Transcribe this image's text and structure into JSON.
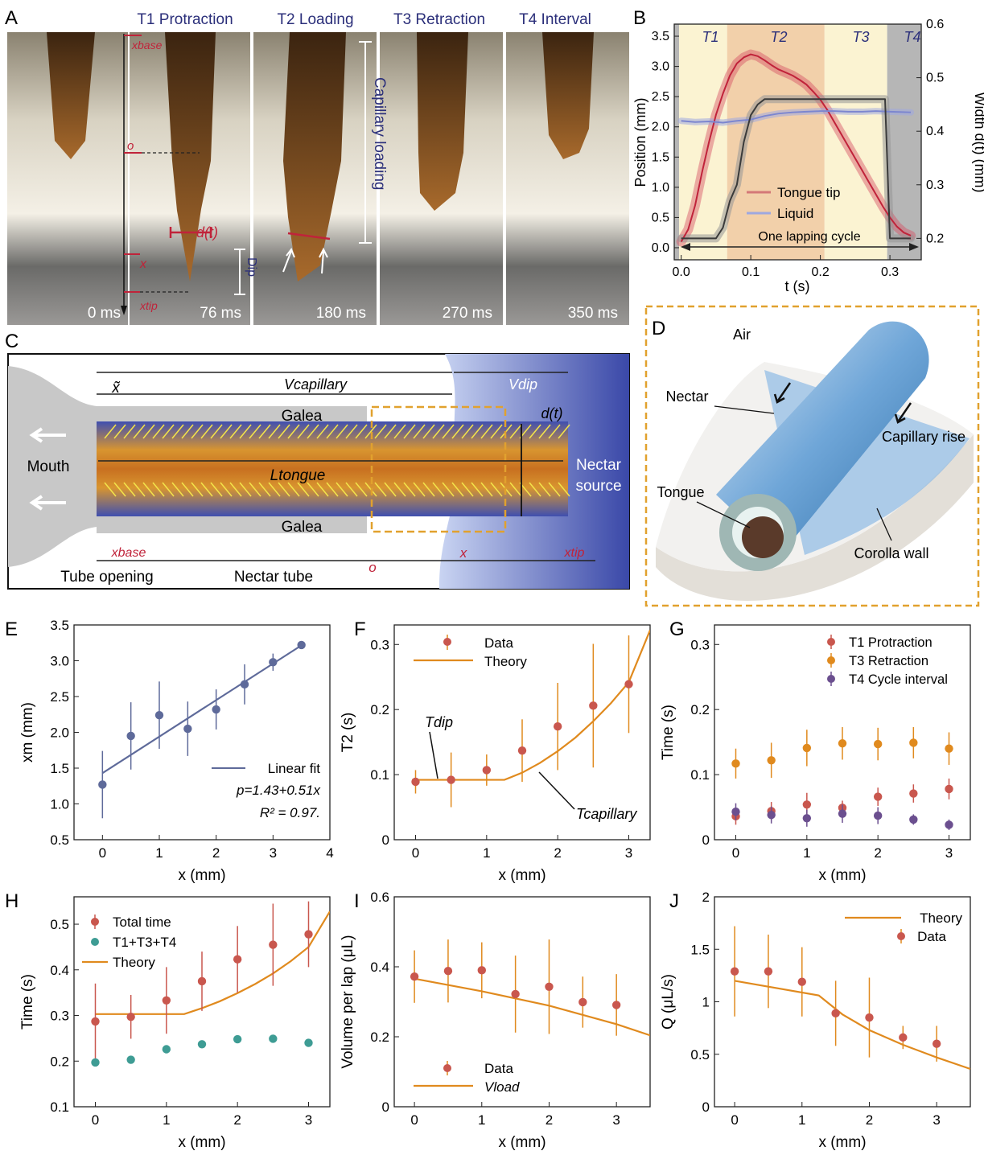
{
  "colors": {
    "orange": "#E08A1E",
    "red": "#C9574E",
    "purple": "#6B4F8F",
    "teal": "#3E9C94",
    "slate": "#5E6A9A",
    "navy": "#2B2F7A",
    "crimson": "#C0233A",
    "pink": "#D47878",
    "lavender": "#9EA8E0",
    "darkgray": "#3A3A3A",
    "dashed_orange": "#E1A12E"
  },
  "panel_letters": {
    "A": "A",
    "B": "B",
    "C": "C",
    "D": "D",
    "E": "E",
    "F": "F",
    "G": "G",
    "H": "H",
    "I": "I",
    "J": "J"
  },
  "panelA": {
    "phases": [
      "T1 Protraction",
      "T2 Loading",
      "T3 Retraction",
      "T4 Interval"
    ],
    "times": [
      "0 ms",
      "76 ms",
      "180 ms",
      "270 ms",
      "350 ms"
    ],
    "labels": {
      "xbase": "xbase",
      "o": "o",
      "x": "x",
      "xtip": "xtip",
      "dt": "d(t)",
      "dip": "Dip",
      "capillary_loading": "Capillary loading"
    }
  },
  "panelB": {
    "phases": [
      "T1",
      "T2",
      "T3",
      "T4"
    ],
    "legend": [
      "Tongue tip",
      "Liquid"
    ],
    "cycle_label": "One lapping cycle",
    "chart_data": {
      "type": "line",
      "xlabel": "t (s)",
      "ylabel_left": "Position (mm)",
      "ylabel_right": "Width d(t) (mm)",
      "xlim": [
        -0.01,
        0.345
      ],
      "ylim_left": [
        -0.2,
        3.7
      ],
      "ylim_right": [
        0.16,
        0.6
      ],
      "xticks": [
        "0.0",
        "0.1",
        "0.2",
        "0.3"
      ],
      "yticks_left": [
        "0.0",
        "0.5",
        "1.0",
        "1.5",
        "2.0",
        "2.5",
        "3.0",
        "3.5"
      ],
      "yticks_right": [
        "0.2",
        "0.3",
        "0.4",
        "0.5",
        "0.6"
      ],
      "phase_bounds": [
        -0.003,
        0.066,
        0.206,
        0.296,
        0.345
      ],
      "series": [
        {
          "name": "Tongue tip",
          "axis": "left",
          "x": [
            0,
            0.01,
            0.02,
            0.03,
            0.04,
            0.05,
            0.06,
            0.07,
            0.08,
            0.09,
            0.1,
            0.11,
            0.12,
            0.13,
            0.14,
            0.15,
            0.16,
            0.17,
            0.18,
            0.19,
            0.2,
            0.21,
            0.22,
            0.23,
            0.24,
            0.25,
            0.26,
            0.27,
            0.28,
            0.29,
            0.3,
            0.31,
            0.32,
            0.33
          ],
          "y": [
            0.1,
            0.3,
            0.7,
            1.25,
            1.75,
            2.2,
            2.55,
            2.85,
            3.05,
            3.15,
            3.2,
            3.17,
            3.1,
            3.02,
            2.95,
            2.9,
            2.85,
            2.78,
            2.7,
            2.58,
            2.45,
            2.28,
            2.08,
            1.88,
            1.68,
            1.48,
            1.28,
            1.08,
            0.88,
            0.68,
            0.5,
            0.35,
            0.25,
            0.2
          ]
        },
        {
          "name": "Liquid",
          "axis": "left",
          "x": [
            0,
            0.02,
            0.04,
            0.06,
            0.08,
            0.1,
            0.12,
            0.14,
            0.16,
            0.18,
            0.2,
            0.22,
            0.24,
            0.26,
            0.28,
            0.3,
            0.33
          ],
          "y": [
            2.1,
            2.08,
            2.09,
            2.07,
            2.1,
            2.12,
            2.18,
            2.22,
            2.24,
            2.25,
            2.26,
            2.26,
            2.25,
            2.25,
            2.26,
            2.25,
            2.24
          ]
        },
        {
          "name": "Width d(t)",
          "axis": "right",
          "x": [
            0,
            0.05,
            0.06,
            0.07,
            0.08,
            0.09,
            0.1,
            0.11,
            0.12,
            0.2,
            0.293,
            0.3,
            0.31,
            0.33
          ],
          "y": [
            0.2,
            0.2,
            0.22,
            0.27,
            0.3,
            0.38,
            0.43,
            0.45,
            0.46,
            0.46,
            0.46,
            0.2,
            0.2,
            0.2
          ]
        }
      ]
    }
  },
  "panelC": {
    "labels": {
      "x_tilde": "x̃",
      "v_capillary": "Vcapillary",
      "v_dip": "Vdip",
      "galea_top": "Galea",
      "galea_bottom": "Galea",
      "mouth": "Mouth",
      "l_tongue": "Ltongue",
      "dt": "d(t)",
      "nectar_source": "Nectar\nsource",
      "xbase": "xbase",
      "o": "o",
      "x": "x",
      "xtip": "xtip",
      "tube_opening": "Tube opening",
      "nectar_tube": "Nectar tube"
    }
  },
  "panelD": {
    "labels": {
      "air": "Air",
      "nectar": "Nectar",
      "capillary_rise": "Capillary rise",
      "tongue": "Tongue",
      "corolla_wall": "Corolla wall"
    }
  },
  "panelE": {
    "legend": "Linear fit",
    "equation": "p=1.43+0.51x",
    "r2": "R² = 0.97.",
    "chart_data": {
      "type": "scatter",
      "xlabel": "x (mm)",
      "ylabel": "xm (mm)",
      "xlim": [
        -0.5,
        4
      ],
      "ylim": [
        0.5,
        3.5
      ],
      "xticks": [
        "0",
        "1",
        "2",
        "3",
        "4"
      ],
      "yticks": [
        "0.5",
        "1.0",
        "1.5",
        "2.0",
        "2.5",
        "3.0",
        "3.5"
      ],
      "x": [
        0,
        0.5,
        1,
        1.5,
        2,
        2.5,
        3,
        3.5
      ],
      "y": [
        1.27,
        1.95,
        2.24,
        2.05,
        2.32,
        2.67,
        2.98,
        3.22
      ],
      "err": [
        0.47,
        0.47,
        0.47,
        0.38,
        0.28,
        0.28,
        0.12,
        0.03
      ],
      "fit": {
        "intercept": 1.43,
        "slope": 0.51
      }
    }
  },
  "panelF": {
    "legend": [
      "Data",
      "Theory"
    ],
    "ann_dip": "Tdip",
    "ann_cap": "Tcapillary",
    "chart_data": {
      "type": "scatter",
      "xlabel": "x (mm)",
      "ylabel": "T2 (s)",
      "xlim": [
        -0.3,
        3.3
      ],
      "ylim": [
        0,
        0.33
      ],
      "xticks": [
        "0",
        "1",
        "2",
        "3"
      ],
      "yticks": [
        "0",
        "0.1",
        "0.2",
        "0.3"
      ],
      "x": [
        0,
        0.5,
        1,
        1.5,
        2,
        2.5,
        3
      ],
      "y": [
        0.089,
        0.092,
        0.107,
        0.137,
        0.174,
        0.206,
        0.239
      ],
      "err": [
        0.018,
        0.042,
        0.024,
        0.048,
        0.067,
        0.095,
        0.075
      ],
      "theory_x": [
        -0.05,
        1.25,
        1.5,
        1.75,
        2,
        2.25,
        2.5,
        2.75,
        3,
        3.3
      ],
      "theory_y": [
        0.092,
        0.092,
        0.103,
        0.118,
        0.136,
        0.157,
        0.182,
        0.21,
        0.242,
        0.322
      ]
    }
  },
  "panelG": {
    "legend": [
      "T1 Protraction",
      "T3 Retraction",
      "T4 Cycle interval"
    ],
    "chart_data": {
      "type": "scatter",
      "xlabel": "x (mm)",
      "ylabel": "Time (s)",
      "xlim": [
        -0.3,
        3.3
      ],
      "ylim": [
        0,
        0.33
      ],
      "xticks": [
        "0",
        "1",
        "2",
        "3"
      ],
      "yticks": [
        "0",
        "0.1",
        "0.2",
        "0.3"
      ],
      "series": [
        {
          "name": "T1 Protraction",
          "x": [
            0,
            0.5,
            1,
            1.5,
            2,
            2.5,
            3
          ],
          "y": [
            0.036,
            0.044,
            0.054,
            0.049,
            0.066,
            0.071,
            0.078
          ],
          "err": [
            0.013,
            0.014,
            0.018,
            0.011,
            0.014,
            0.014,
            0.016
          ]
        },
        {
          "name": "T3 Retraction",
          "x": [
            0,
            0.5,
            1,
            1.5,
            2,
            2.5,
            3
          ],
          "y": [
            0.117,
            0.122,
            0.141,
            0.148,
            0.147,
            0.149,
            0.14
          ],
          "err": [
            0.023,
            0.027,
            0.028,
            0.025,
            0.025,
            0.024,
            0.025
          ]
        },
        {
          "name": "T4 Cycle interval",
          "x": [
            0,
            0.5,
            1,
            1.5,
            2,
            2.5,
            3
          ],
          "y": [
            0.043,
            0.038,
            0.033,
            0.04,
            0.037,
            0.031,
            0.023
          ],
          "err": [
            0.013,
            0.013,
            0.013,
            0.014,
            0.013,
            0.008,
            0.008
          ]
        }
      ]
    }
  },
  "panelH": {
    "legend": [
      "Total time",
      "T1+T3+T4",
      "Theory"
    ],
    "chart_data": {
      "type": "scatter",
      "xlabel": "x (mm)",
      "ylabel": "Time (s)",
      "xlim": [
        -0.3,
        3.3
      ],
      "ylim": [
        0.1,
        0.56
      ],
      "xticks": [
        "0",
        "1",
        "2",
        "3"
      ],
      "yticks": [
        "0.1",
        "0.2",
        "0.3",
        "0.4",
        "0.5"
      ],
      "series": [
        {
          "name": "Total time",
          "x": [
            0,
            0.5,
            1,
            1.5,
            2,
            2.5,
            3
          ],
          "y": [
            0.287,
            0.297,
            0.333,
            0.375,
            0.423,
            0.455,
            0.478
          ],
          "err": [
            0.083,
            0.048,
            0.073,
            0.065,
            0.073,
            0.09,
            0.072
          ]
        },
        {
          "name": "T1+T3+T4",
          "x": [
            0,
            0.5,
            1,
            1.5,
            2,
            2.5,
            3
          ],
          "y": [
            0.197,
            0.203,
            0.226,
            0.237,
            0.248,
            0.249,
            0.24
          ]
        }
      ],
      "theory_x": [
        0,
        1.25,
        1.5,
        1.75,
        2,
        2.25,
        2.5,
        2.75,
        3,
        3.3
      ],
      "theory_y": [
        0.303,
        0.303,
        0.316,
        0.331,
        0.349,
        0.369,
        0.392,
        0.419,
        0.45,
        0.528
      ]
    }
  },
  "panelI": {
    "legend": [
      "Data",
      "Vload"
    ],
    "chart_data": {
      "type": "scatter",
      "xlabel": "x (mm)",
      "ylabel": "Volume per lap (μL)",
      "xlim": [
        -0.3,
        3.5
      ],
      "ylim": [
        0,
        0.6
      ],
      "xticks": [
        "0",
        "1",
        "2",
        "3"
      ],
      "yticks": [
        "0",
        "0.2",
        "0.4",
        "0.6"
      ],
      "x": [
        0,
        0.5,
        1,
        1.5,
        2,
        2.5,
        3
      ],
      "y": [
        0.372,
        0.388,
        0.39,
        0.322,
        0.343,
        0.299,
        0.291
      ],
      "err": [
        0.075,
        0.09,
        0.08,
        0.11,
        0.135,
        0.073,
        0.088
      ],
      "theory_x": [
        0,
        1,
        2,
        3,
        3.5
      ],
      "theory_y": [
        0.366,
        0.33,
        0.289,
        0.236,
        0.204
      ]
    }
  },
  "panelJ": {
    "legend": [
      "Theory",
      "Data"
    ],
    "chart_data": {
      "type": "scatter",
      "xlabel": "x (mm)",
      "ylabel": "Q (μL/s)",
      "xlim": [
        -0.3,
        3.5
      ],
      "ylim": [
        0,
        2
      ],
      "xticks": [
        "0",
        "1",
        "2",
        "3"
      ],
      "yticks": [
        "0",
        "0.5",
        "1",
        "1.5",
        "2"
      ],
      "x": [
        0,
        0.5,
        1,
        1.5,
        2,
        2.5,
        3
      ],
      "y": [
        1.29,
        1.29,
        1.19,
        0.89,
        0.85,
        0.66,
        0.6
      ],
      "err": [
        0.43,
        0.35,
        0.33,
        0.31,
        0.38,
        0.11,
        0.17
      ],
      "theory_x": [
        0,
        1.25,
        1.6,
        2,
        2.5,
        3,
        3.5
      ],
      "theory_y": [
        1.2,
        1.06,
        0.88,
        0.73,
        0.59,
        0.47,
        0.36
      ]
    }
  }
}
